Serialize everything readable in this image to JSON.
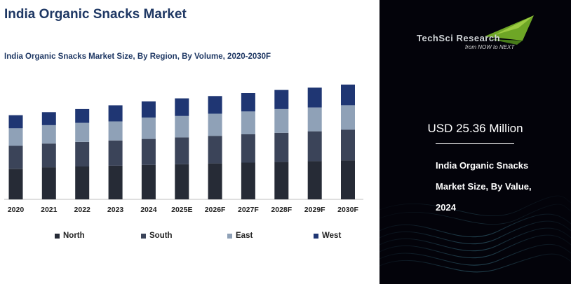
{
  "page": {
    "title": "India Organic Snacks Market"
  },
  "chart_data": {
    "type": "bar",
    "stacked": true,
    "title": "India Organic Snacks Market Size, By Region, By Volume, 2020-2030F",
    "xlabel": "",
    "ylabel": "",
    "categories": [
      "2020",
      "2021",
      "2022",
      "2023",
      "2024",
      "2025E",
      "2026F",
      "2027F",
      "2028F",
      "2029F",
      "2030F"
    ],
    "series": [
      {
        "name": "North",
        "color": "#262b36",
        "values": [
          40,
          42,
          43,
          44,
          45,
          46,
          47,
          48,
          49,
          50,
          51
        ]
      },
      {
        "name": "South",
        "color": "#3b4459",
        "values": [
          30,
          31,
          32,
          33,
          34,
          35,
          36,
          37,
          38,
          39,
          40
        ]
      },
      {
        "name": "East",
        "color": "#8fa1b7",
        "values": [
          23,
          24,
          25,
          25,
          28,
          28,
          29,
          30,
          31,
          31,
          32
        ]
      },
      {
        "name": "West",
        "color": "#1f3673",
        "values": [
          17,
          17,
          18,
          21,
          21,
          23,
          23,
          24,
          25,
          26,
          27
        ]
      }
    ],
    "ylim": [
      0,
      160
    ],
    "grid": false,
    "legend": "bottom"
  },
  "panel": {
    "logo_text": "TechSci Research",
    "logo_tagline": "from NOW to NEXT",
    "value": "USD 25.36 Million",
    "description_lines": [
      "India Organic Snacks",
      "Market Size, By Value,",
      "2024"
    ],
    "colors": {
      "background": "#03030a",
      "accent": "#7ab829"
    }
  }
}
